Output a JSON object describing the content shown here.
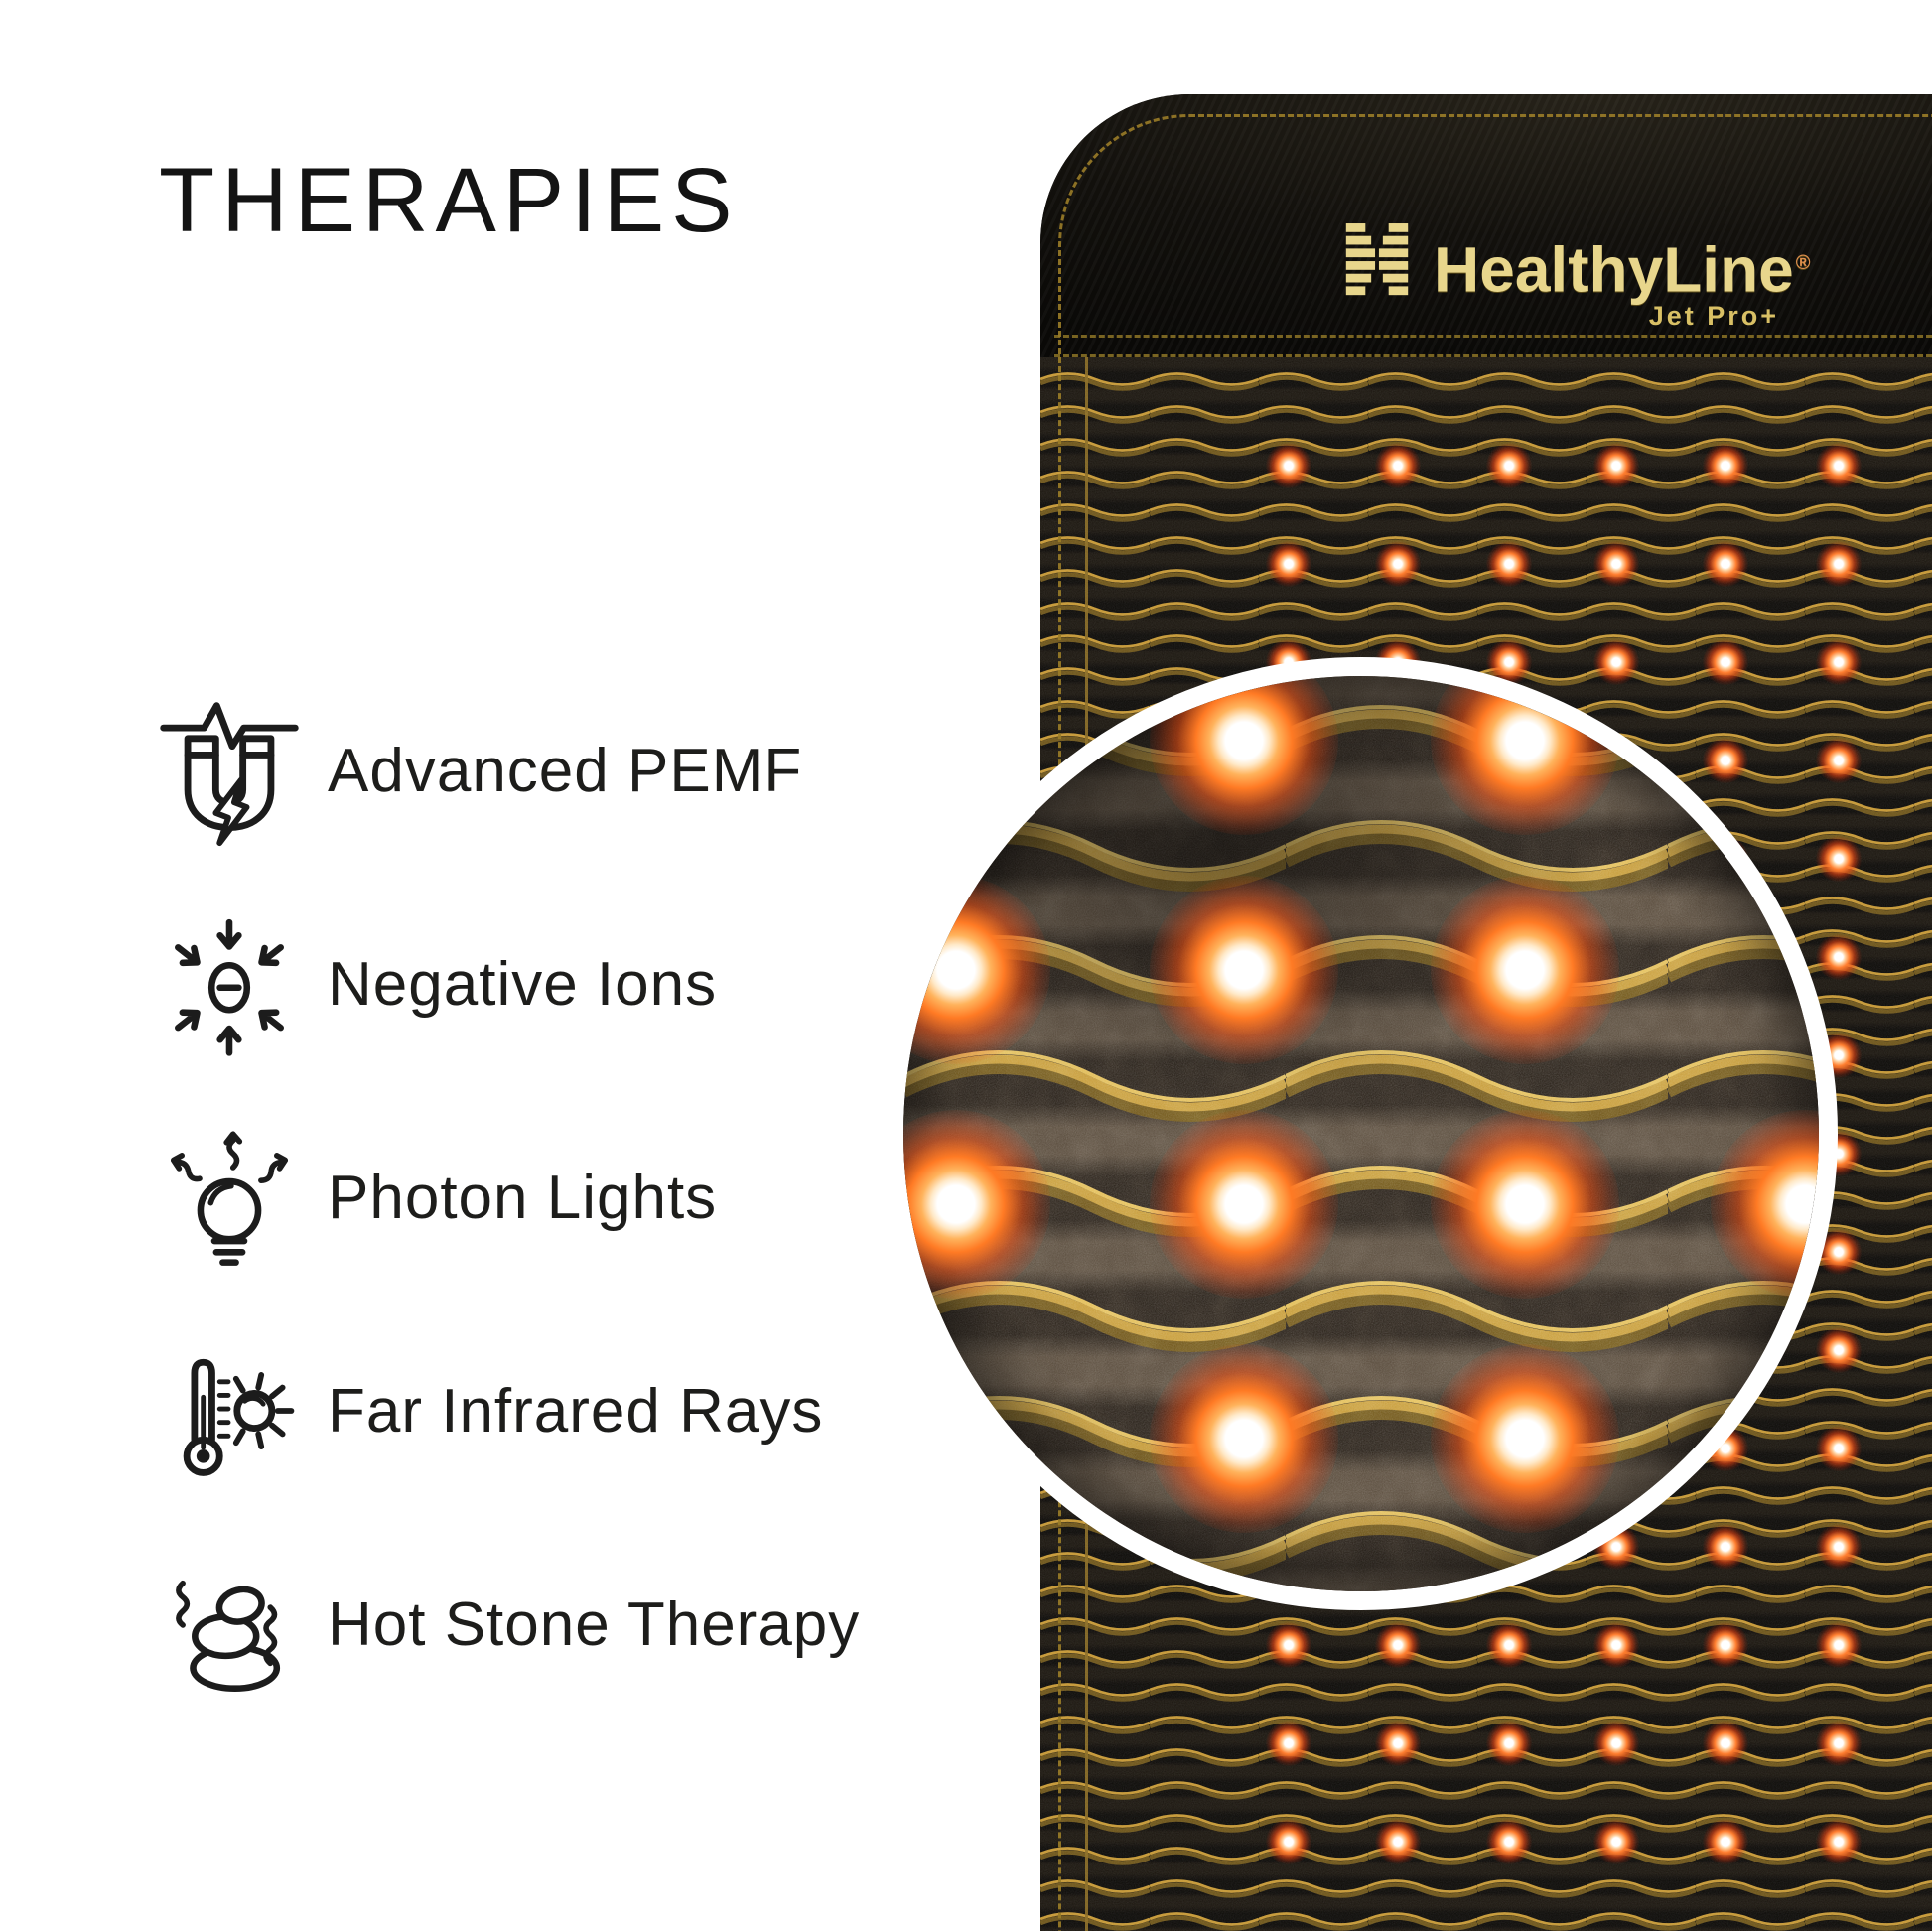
{
  "title": "THERAPIES",
  "therapies": [
    {
      "label": "Advanced PEMF",
      "icon": "magnet-pulse-icon"
    },
    {
      "label": "Negative Ions",
      "icon": "negative-ion-icon"
    },
    {
      "label": "Photon Lights",
      "icon": "photon-bulb-icon"
    },
    {
      "label": "Far Infrared Rays",
      "icon": "infrared-thermometer-sun-icon"
    },
    {
      "label": "Hot Stone Therapy",
      "icon": "hot-stones-icon"
    }
  ],
  "mat": {
    "brand": "HealthyLine",
    "registered_mark": "®",
    "model": "Jet Pro+"
  },
  "colors": {
    "text": "#1d1d1b",
    "stitch_gold": "#9b7d28",
    "wave_gold": "#c59733",
    "logo_gold": "#e8d68c",
    "led_core": "#ffffff",
    "led_glow": "#ff5a1e",
    "mat_black": "#0b0907"
  }
}
